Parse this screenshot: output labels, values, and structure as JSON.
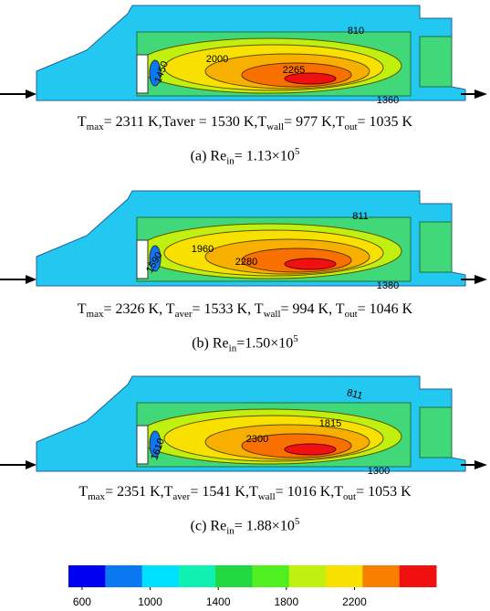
{
  "panels": [
    {
      "contour_labels": [
        "810",
        "2000",
        "2265",
        "1450",
        "1360"
      ],
      "stats": [
        {
          "text": "T",
          "sub": "max"
        },
        {
          "text": "= 2311 K,Taver = 1530 K,T",
          "sub": "wall"
        },
        {
          "text": "= 977 K,T",
          "sub": "out"
        },
        {
          "text": "= 1035 K"
        }
      ],
      "caption": [
        {
          "text": "(a) Re",
          "sub": "in"
        },
        {
          "text": "= 1.13×10",
          "sup": "5"
        }
      ]
    },
    {
      "contour_labels": [
        "811",
        "1960",
        "2280",
        "1590",
        "1380"
      ],
      "stats": [
        {
          "text": "T",
          "sub": "max"
        },
        {
          "text": "= 2326 K, T",
          "sub": "aver"
        },
        {
          "text": "= 1533 K, T",
          "sub": "wall"
        },
        {
          "text": "= 994 K, T",
          "sub": "out"
        },
        {
          "text": "= 1046 K"
        }
      ],
      "caption": [
        {
          "text": "(b) Re",
          "sub": "in"
        },
        {
          "text": "=1.50×10",
          "sup": "5"
        }
      ]
    },
    {
      "contour_labels": [
        "811",
        "1815",
        "2300",
        "1610",
        "1300"
      ],
      "stats": [
        {
          "text": "T",
          "sub": "max"
        },
        {
          "text": "= 2351 K,T",
          "sub": "aver"
        },
        {
          "text": "= 1541 K,T",
          "sub": "wall"
        },
        {
          "text": "= 1016 K,T",
          "sub": "out"
        },
        {
          "text": "= 1053 K"
        }
      ],
      "caption": [
        {
          "text": "(c) Re",
          "sub": "in"
        },
        {
          "text": "= 1.88×10",
          "sup": "5"
        }
      ]
    }
  ],
  "colorbar": {
    "lim": [
      520,
      2680
    ],
    "ticks": [
      600,
      1000,
      1400,
      1800,
      2200
    ],
    "colors": [
      "#0000f0",
      "#0a78f0",
      "#00e0ff",
      "#10f0b0",
      "#20d840",
      "#50f020",
      "#c0f010",
      "#f8e000",
      "#f88000",
      "#f01010"
    ]
  }
}
